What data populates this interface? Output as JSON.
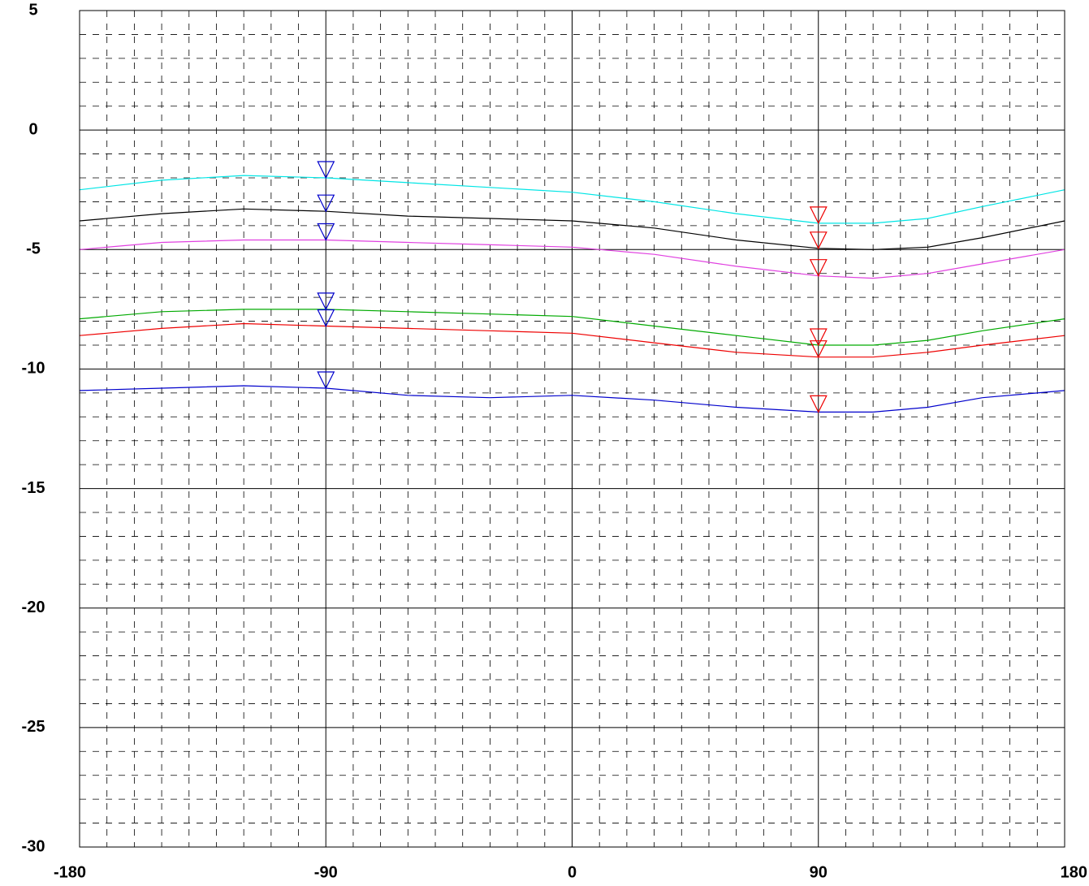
{
  "chart_data": {
    "type": "line",
    "title": "",
    "xlabel": "",
    "ylabel": "",
    "xlim": [
      -180,
      180
    ],
    "ylim": [
      -30,
      5
    ],
    "x_ticks": [
      -180,
      -90,
      0,
      90,
      180
    ],
    "x_tick_labels": [
      "-180",
      "-90",
      "0",
      "90",
      "180"
    ],
    "y_ticks": [
      5,
      0,
      -5,
      -10,
      -15,
      -20,
      -25,
      -30
    ],
    "y_tick_labels": [
      "5",
      "0",
      "-5",
      "-10",
      "-15",
      "-20",
      "-25",
      "-30"
    ],
    "grid": {
      "major": true,
      "minor_dashed": true,
      "minor_x_step": 10,
      "minor_y_step": 1
    },
    "series": [
      {
        "color": "#00e5e5",
        "x": [
          -180,
          -150,
          -120,
          -90,
          -60,
          -30,
          0,
          30,
          60,
          90,
          110,
          130,
          150,
          180
        ],
        "y": [
          -2.5,
          -2.1,
          -1.9,
          -2.0,
          -2.2,
          -2.4,
          -2.6,
          -3.0,
          -3.5,
          -3.9,
          -3.9,
          -3.7,
          -3.2,
          -2.5
        ]
      },
      {
        "color": "#000000",
        "x": [
          -180,
          -150,
          -120,
          -90,
          -60,
          -30,
          0,
          30,
          60,
          90,
          110,
          130,
          150,
          180
        ],
        "y": [
          -3.8,
          -3.5,
          -3.3,
          -3.4,
          -3.6,
          -3.7,
          -3.8,
          -4.1,
          -4.6,
          -4.95,
          -5.0,
          -4.9,
          -4.5,
          -3.8
        ]
      },
      {
        "color": "#e040e0",
        "x": [
          -180,
          -150,
          -120,
          -90,
          -60,
          -30,
          0,
          30,
          60,
          90,
          110,
          130,
          150,
          180
        ],
        "y": [
          -5.0,
          -4.7,
          -4.6,
          -4.6,
          -4.7,
          -4.8,
          -4.9,
          -5.2,
          -5.7,
          -6.1,
          -6.2,
          -6.0,
          -5.6,
          -5.0
        ]
      },
      {
        "color": "#00aa00",
        "x": [
          -180,
          -150,
          -120,
          -90,
          -60,
          -30,
          0,
          30,
          60,
          90,
          110,
          130,
          150,
          180
        ],
        "y": [
          -7.9,
          -7.6,
          -7.5,
          -7.5,
          -7.6,
          -7.7,
          -7.8,
          -8.2,
          -8.6,
          -9.0,
          -9.0,
          -8.8,
          -8.4,
          -7.9
        ]
      },
      {
        "color": "#ee0000",
        "x": [
          -180,
          -150,
          -120,
          -90,
          -60,
          -30,
          0,
          30,
          60,
          90,
          110,
          130,
          150,
          180
        ],
        "y": [
          -8.6,
          -8.3,
          -8.1,
          -8.2,
          -8.3,
          -8.4,
          -8.5,
          -8.9,
          -9.3,
          -9.5,
          -9.5,
          -9.3,
          -9.0,
          -8.6
        ]
      },
      {
        "color": "#0000cc",
        "x": [
          -180,
          -150,
          -120,
          -90,
          -60,
          -30,
          0,
          30,
          60,
          90,
          110,
          130,
          150,
          180
        ],
        "y": [
          -10.9,
          -10.8,
          -10.7,
          -10.8,
          -11.1,
          -11.2,
          -11.1,
          -11.3,
          -11.6,
          -11.8,
          -11.8,
          -11.6,
          -11.2,
          -10.9
        ]
      }
    ],
    "markers": [
      {
        "color": "#0000cc",
        "x": -90,
        "y": -2.0
      },
      {
        "color": "#0000cc",
        "x": -90,
        "y": -3.4
      },
      {
        "color": "#0000cc",
        "x": -90,
        "y": -4.6
      },
      {
        "color": "#0000cc",
        "x": -90,
        "y": -7.5
      },
      {
        "color": "#0000cc",
        "x": -90,
        "y": -8.2
      },
      {
        "color": "#0000cc",
        "x": -90,
        "y": -10.8
      },
      {
        "color": "#ee0000",
        "x": 90,
        "y": -3.9
      },
      {
        "color": "#ee0000",
        "x": 90,
        "y": -4.95
      },
      {
        "color": "#ee0000",
        "x": 90,
        "y": -6.1
      },
      {
        "color": "#ee0000",
        "x": 90,
        "y": -9.0
      },
      {
        "color": "#ee0000",
        "x": 90,
        "y": -9.5
      },
      {
        "color": "#ee0000",
        "x": 90,
        "y": -11.8
      }
    ]
  }
}
